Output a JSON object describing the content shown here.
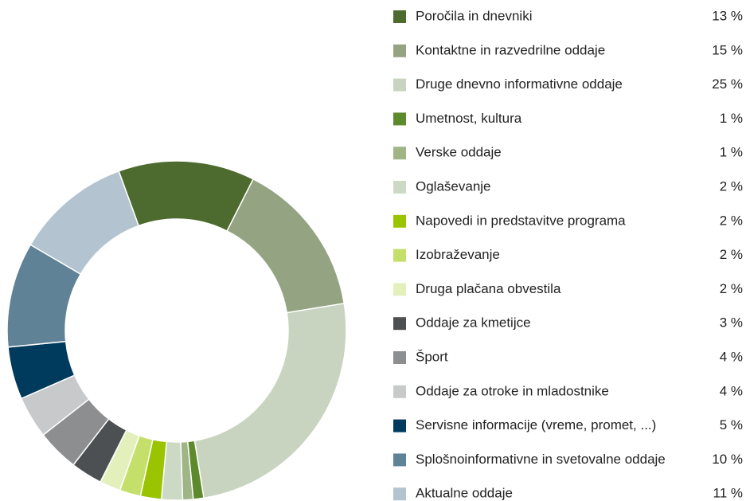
{
  "chart_data": {
    "type": "donut",
    "categories": [
      "Poročila in dnevniki",
      "Kontaktne in razvedrilne oddaje",
      "Druge dnevno informativne oddaje",
      "Umetnost, kultura",
      "Verske oddaje",
      "Oglaševanje",
      "Napovedi in predstavitve programa",
      "Izobraževanje",
      "Druga plačana obvestila",
      "Oddaje za kmetijce",
      "Šport",
      "Oddaje za otroke in mladostnike",
      "Servisne informacije (vreme, promet, ...)",
      "Splošnoinformativne in svetovalne oddaje",
      "Aktualne oddaje"
    ],
    "values": [
      13,
      15,
      25,
      1,
      1,
      2,
      2,
      2,
      2,
      3,
      4,
      4,
      5,
      10,
      11
    ],
    "value_labels": [
      "13 %",
      "15 %",
      "25 %",
      "1 %",
      "1 %",
      "2 %",
      "2 %",
      "2 %",
      "2 %",
      "3 %",
      "4 %",
      "4 %",
      "5 %",
      "10 %",
      "11 %"
    ],
    "colors": [
      "#4d6b2f",
      "#94a382",
      "#c9d4c0",
      "#5e8a2e",
      "#9fb586",
      "#ccd9c4",
      "#9bc400",
      "#c4df6a",
      "#e3f0bc",
      "#4d5053",
      "#8c8e90",
      "#c8c9ca",
      "#003a5c",
      "#5f8297",
      "#b3c4d0"
    ]
  }
}
